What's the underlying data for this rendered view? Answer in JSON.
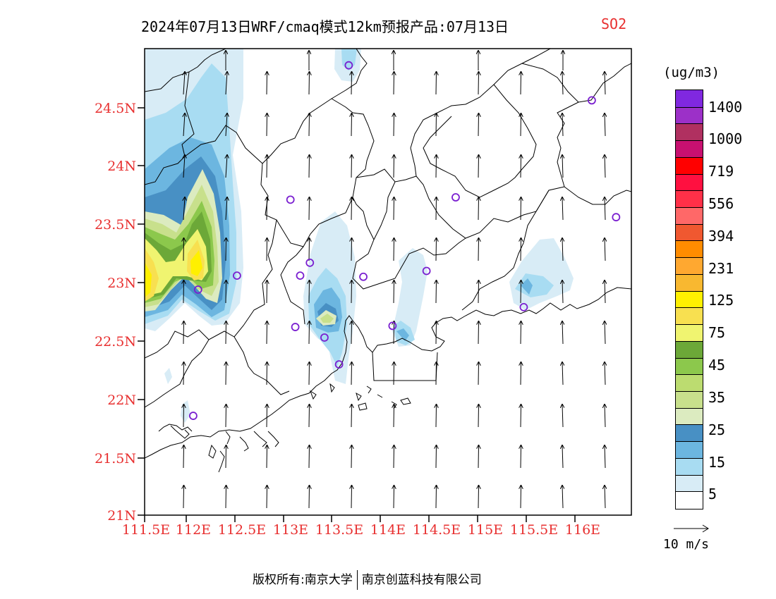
{
  "title": {
    "main": "2024年07月13日WRF/cmaq模式12km预报产品:07月13日",
    "species": "SO2"
  },
  "axes": {
    "lat_labels": [
      "24.5N",
      "24N",
      "23.5N",
      "23N",
      "22.5N",
      "22N",
      "21.5N",
      "21N"
    ],
    "lon_labels": [
      "111.5E",
      "112E",
      "112.5E",
      "113E",
      "113.5E",
      "114E",
      "114.5E",
      "115E",
      "115.5E",
      "116E"
    ],
    "label_color": "#e83030"
  },
  "legend": {
    "units": "(ug/m3)",
    "colors": [
      "#ffffff",
      "#d8ecf6",
      "#a8dcf2",
      "#6cb6e0",
      "#4890c4",
      "#dcebc0",
      "#c8e08c",
      "#bcdc70",
      "#8cc84c",
      "#6ca838",
      "#f0f470",
      "#f8e050",
      "#fff000",
      "#f8b830",
      "#ffa830",
      "#ff8c00",
      "#f05830",
      "#ff6868",
      "#ff3048",
      "#ff1040",
      "#ff0000",
      "#c81070",
      "#b03060",
      "#9c30c8",
      "#8028e0"
    ],
    "labels": [
      "5",
      "15",
      "25",
      "35",
      "45",
      "75",
      "125",
      "231",
      "394",
      "556",
      "719",
      "1000",
      "1400"
    ]
  },
  "wind_scale": {
    "label": "10 m/s"
  },
  "stations": [
    {
      "lon": 113.6,
      "lat": 24.85
    },
    {
      "lon": 116.1,
      "lat": 24.55
    },
    {
      "lon": 113.0,
      "lat": 23.7
    },
    {
      "lon": 114.7,
      "lat": 23.72
    },
    {
      "lon": 116.35,
      "lat": 23.55
    },
    {
      "lon": 112.45,
      "lat": 23.05
    },
    {
      "lon": 113.1,
      "lat": 23.05
    },
    {
      "lon": 113.2,
      "lat": 23.16
    },
    {
      "lon": 113.75,
      "lat": 23.04
    },
    {
      "lon": 114.4,
      "lat": 23.09
    },
    {
      "lon": 112.05,
      "lat": 22.93
    },
    {
      "lon": 115.4,
      "lat": 22.78
    },
    {
      "lon": 113.05,
      "lat": 22.61
    },
    {
      "lon": 113.35,
      "lat": 22.52
    },
    {
      "lon": 114.05,
      "lat": 22.62
    },
    {
      "lon": 113.5,
      "lat": 22.29
    },
    {
      "lon": 112.0,
      "lat": 21.85
    }
  ],
  "footer": {
    "left": "版权所有:南京大学",
    "right": "南京创蓝科技有限公司"
  }
}
